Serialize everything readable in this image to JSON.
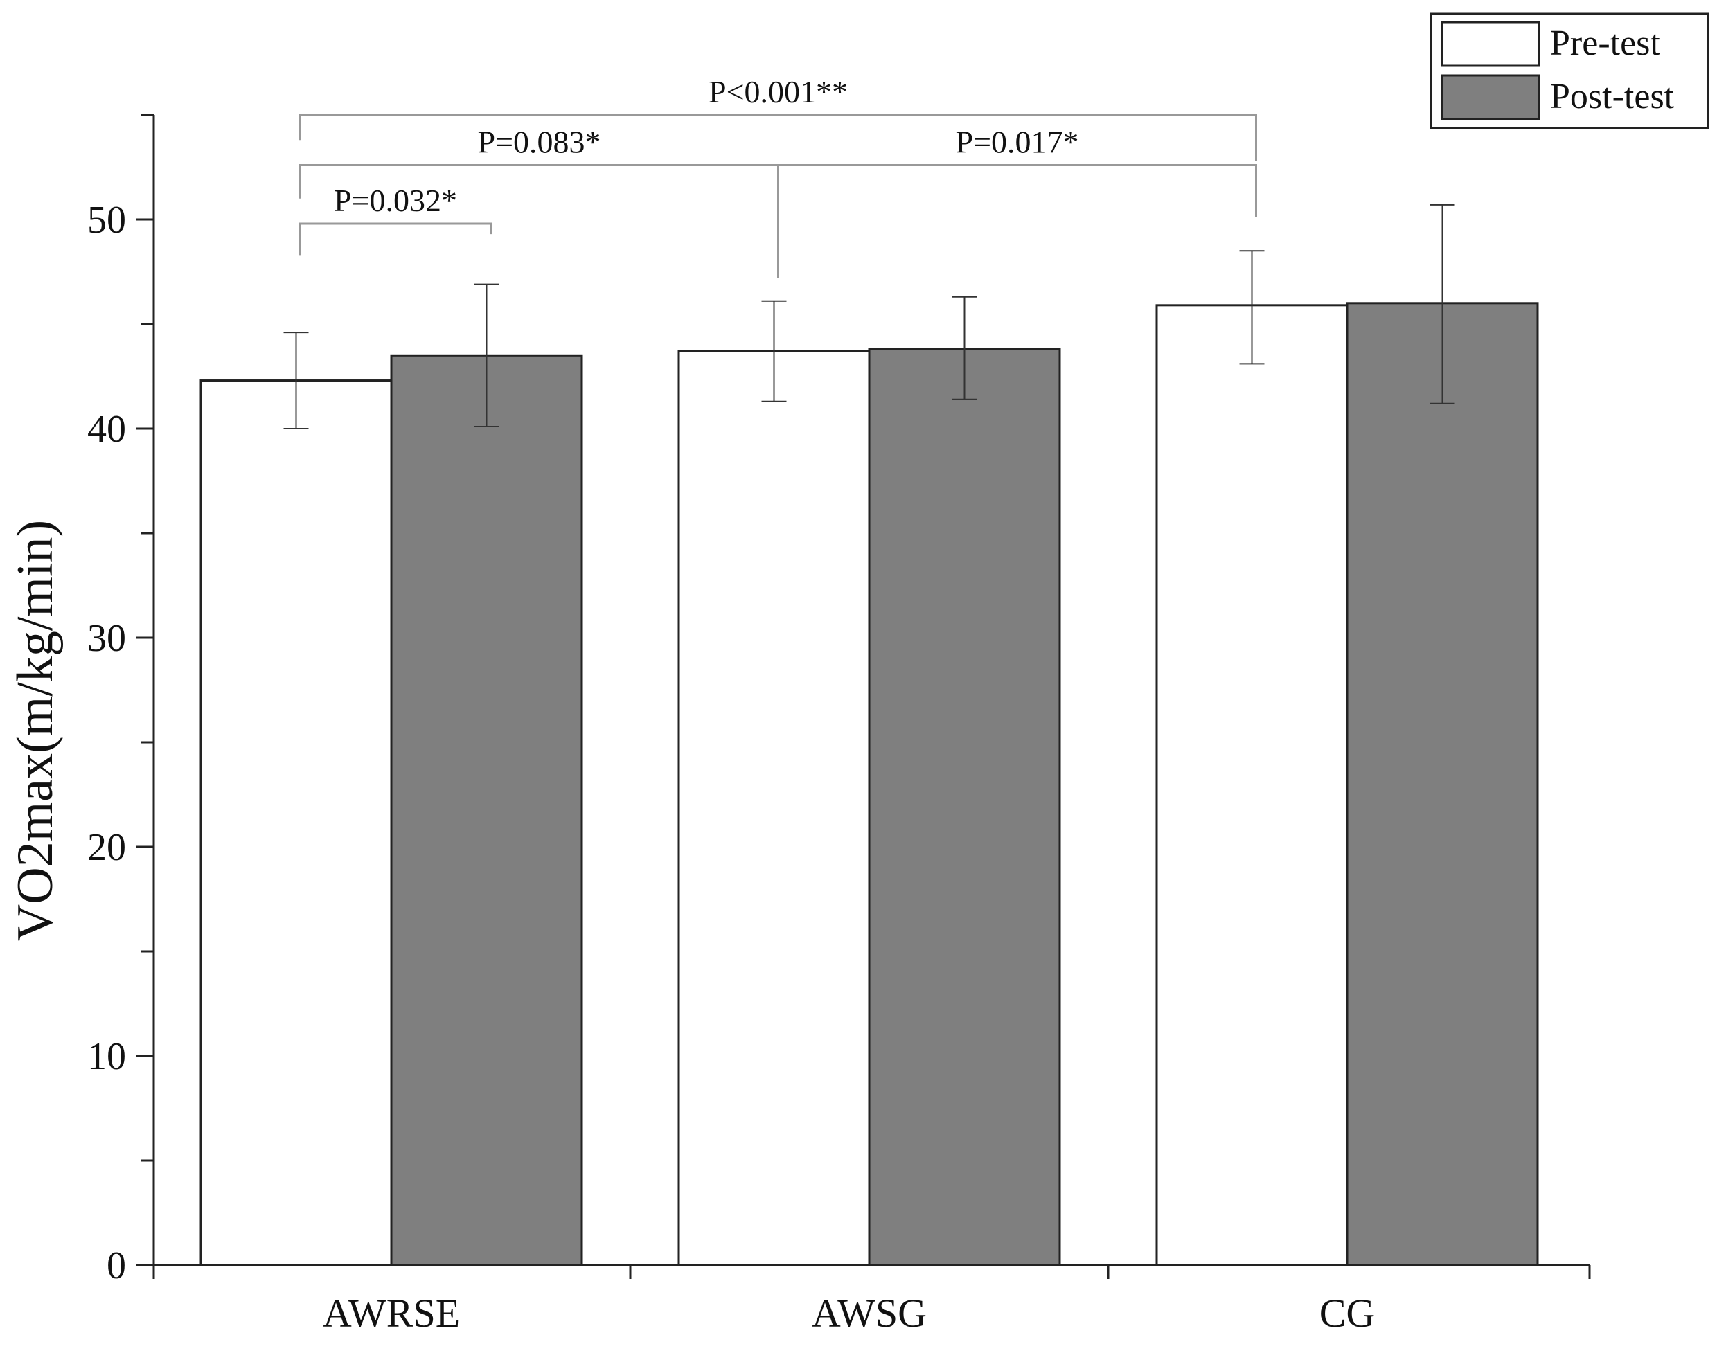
{
  "chart_data": {
    "type": "bar",
    "ylabel": "VO2max(m/kg/min)",
    "xlabel": "",
    "ylim": [
      0,
      55
    ],
    "yticks": [
      0,
      10,
      20,
      30,
      40,
      50
    ],
    "yminor_step": 5,
    "categories": [
      "AWRSE",
      "AWSG",
      "CG"
    ],
    "series": [
      {
        "name": "Pre-test",
        "color": "#ffffff",
        "values": [
          42.3,
          43.7,
          45.9
        ],
        "error": [
          [
            40.0,
            44.6
          ],
          [
            41.3,
            46.1
          ],
          [
            43.1,
            48.5
          ]
        ]
      },
      {
        "name": "Post-test",
        "color": "#7f7f7f",
        "values": [
          43.5,
          43.8,
          46.0
        ],
        "error": [
          [
            40.1,
            46.9
          ],
          [
            41.4,
            46.3
          ],
          [
            41.2,
            50.7
          ]
        ]
      }
    ],
    "legend_position": "top-right",
    "grid": false,
    "annotations": [
      {
        "label": "P=0.032*",
        "from": {
          "category": 0,
          "series": 0
        },
        "to": {
          "category": 0,
          "series": 1
        },
        "bracket_y": 49.8,
        "from_drop_y": 48.3,
        "to_drop_y": 49.3
      },
      {
        "label": "P=0.083*",
        "from": {
          "category": 0,
          "series": 0
        },
        "to": {
          "category": 1,
          "series": 0
        },
        "bracket_y": 52.6,
        "from_drop_y": 51.0,
        "to_drop_y": 47.2
      },
      {
        "label": "P=0.017*",
        "from": {
          "category": 1,
          "series": 0
        },
        "to": {
          "category": 2,
          "series": 0
        },
        "bracket_y": 52.6,
        "from_drop_y": 47.2,
        "to_drop_y": 50.1
      },
      {
        "label": "P<0.001**",
        "from": {
          "category": 0,
          "series": 0
        },
        "to": {
          "category": 2,
          "series": 0
        },
        "bracket_y": 55.0,
        "from_drop_y": 53.8,
        "to_drop_y": 52.8
      }
    ]
  }
}
